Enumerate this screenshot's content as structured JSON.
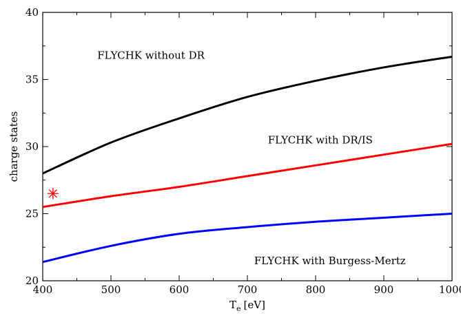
{
  "chart_data": {
    "type": "line",
    "title": "",
    "xlabel": "T",
    "xlabel_subscript": "e",
    "xlabel_unit": "[eV]",
    "ylabel": "charge states",
    "xlim": [
      400,
      1000
    ],
    "ylim": [
      20,
      40
    ],
    "xticks": [
      400,
      500,
      600,
      700,
      800,
      900,
      1000
    ],
    "yticks": [
      20,
      25,
      30,
      35,
      40
    ],
    "grid": false,
    "series": [
      {
        "name": "FLYCHK without DR",
        "color": "#000000",
        "x": [
          400,
          500,
          600,
          700,
          800,
          900,
          1000
        ],
        "y": [
          28.0,
          30.3,
          32.1,
          33.7,
          34.9,
          35.9,
          36.7
        ]
      },
      {
        "name": "FLYCHK with DR/IS",
        "color": "#ff0000",
        "x": [
          400,
          500,
          600,
          700,
          800,
          900,
          1000
        ],
        "y": [
          25.5,
          26.3,
          27.0,
          27.8,
          28.6,
          29.4,
          30.2
        ]
      },
      {
        "name": "FLYCHK with Burgess-Mertz",
        "color": "#0000ff",
        "x": [
          400,
          500,
          600,
          700,
          800,
          900,
          1000
        ],
        "y": [
          21.4,
          22.6,
          23.5,
          24.0,
          24.4,
          24.7,
          25.0
        ]
      }
    ],
    "annotations": [
      {
        "text": "FLYCHK without DR",
        "x": 480,
        "y": 36.8
      },
      {
        "text": "FLYCHK with DR/IS",
        "x": 730,
        "y": 30.5
      },
      {
        "text": "FLYCHK with Burgess-Mertz",
        "x": 710,
        "y": 21.5
      }
    ],
    "markers": [
      {
        "shape": "asterisk",
        "color": "#ff0000",
        "x": 415,
        "y": 26.5
      }
    ]
  }
}
